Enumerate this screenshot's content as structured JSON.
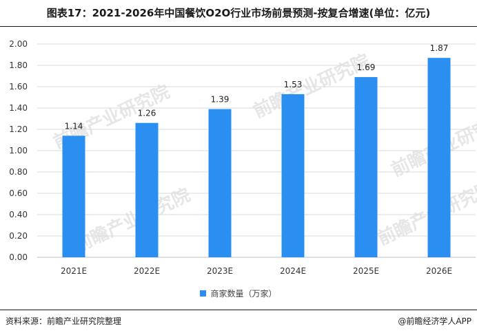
{
  "title": "图表17：2021-2026年中国餐饮O2O行业市场前景预测-按复合增速(单位：亿元)",
  "footer": {
    "source": "资料来源：前瞻产业研究院整理",
    "brand": "@前瞻经济学人APP"
  },
  "watermark": "前瞻产业研究院",
  "colors": {
    "bar": "#2b8ff2",
    "grid": "#d9d9d9",
    "axis": "#bfbfbf"
  },
  "chart_data": {
    "type": "bar",
    "categories": [
      "2021E",
      "2022E",
      "2023E",
      "2024E",
      "2025E",
      "2026E"
    ],
    "series": [
      {
        "name": "商家数量（万家）",
        "values": [
          1.14,
          1.26,
          1.39,
          1.53,
          1.69,
          1.87
        ]
      }
    ],
    "data_labels": [
      "1.14",
      "1.26",
      "1.39",
      "1.53",
      "1.69",
      "1.87"
    ],
    "y_ticks": [
      "0.00",
      "0.20",
      "0.40",
      "0.60",
      "0.80",
      "1.00",
      "1.20",
      "1.40",
      "1.60",
      "1.80",
      "2.00"
    ],
    "ylim": [
      0,
      2.0
    ],
    "grid": true,
    "legend_position": "bottom"
  }
}
